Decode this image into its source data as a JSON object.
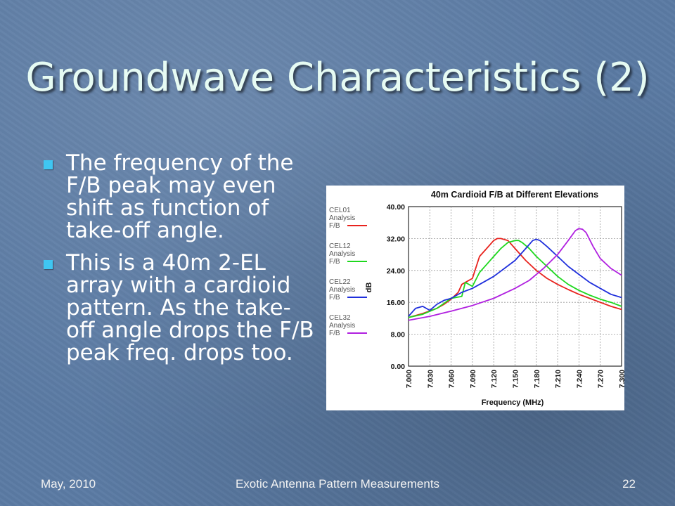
{
  "slide": {
    "title": "Groundwave Characteristics (2)",
    "bullets": [
      "The frequency of the F/B peak may even shift as function of take-off angle.",
      "This is a 40m 2-EL array with a cardioid pattern. As the take-off angle drops the F/B peak freq. drops too."
    ],
    "footer": {
      "date": "May, 2010",
      "center": "Exotic Antenna Pattern Measurements",
      "page": "22"
    },
    "colors": {
      "title": "#e6fbf3",
      "bullet_marker": "#3fc6f2",
      "background": "#5b7ba4"
    }
  },
  "chart_data": {
    "type": "line",
    "title": "40m Cardioid F/B at Different Elevations",
    "xlabel": "Frequency (MHz)",
    "ylabel": "dB",
    "xlim": [
      7.0,
      7.3
    ],
    "ylim": [
      0,
      40
    ],
    "xticks": [
      "7.000",
      "7.030",
      "7.060",
      "7.090",
      "7.120",
      "7.150",
      "7.180",
      "7.210",
      "7.240",
      "7.270",
      "7.300"
    ],
    "yticks": [
      "0.00",
      "8.00",
      "16.00",
      "24.00",
      "32.00",
      "40.00"
    ],
    "grid": true,
    "legend_position": "left",
    "series": [
      {
        "name": "CEL01 Analysis F/B",
        "color": "#e8231e",
        "x": [
          7.0,
          7.02,
          7.04,
          7.05,
          7.06,
          7.07,
          7.075,
          7.08,
          7.09,
          7.1,
          7.11,
          7.12,
          7.125,
          7.13,
          7.14,
          7.15,
          7.165,
          7.18,
          7.195,
          7.21,
          7.225,
          7.24,
          7.255,
          7.27,
          7.285,
          7.3
        ],
        "y": [
          12.2,
          13.2,
          14.5,
          15.5,
          16.8,
          18.5,
          20.5,
          21.0,
          22.0,
          27.5,
          29.5,
          31.5,
          32.0,
          32.0,
          31.5,
          29.5,
          26.5,
          24.0,
          22.0,
          20.5,
          19.2,
          18.0,
          17.0,
          16.0,
          15.0,
          14.2
        ]
      },
      {
        "name": "CEL12 Analysis F/B",
        "color": "#1ed81e",
        "x": [
          7.0,
          7.02,
          7.04,
          7.06,
          7.075,
          7.08,
          7.09,
          7.1,
          7.11,
          7.12,
          7.13,
          7.14,
          7.15,
          7.155,
          7.16,
          7.17,
          7.18,
          7.195,
          7.21,
          7.225,
          7.24,
          7.255,
          7.27,
          7.285,
          7.3
        ],
        "y": [
          12.2,
          13.0,
          14.5,
          17.0,
          17.5,
          21.0,
          20.0,
          23.5,
          25.5,
          27.5,
          29.5,
          31.0,
          31.5,
          31.5,
          31.0,
          29.5,
          27.5,
          25.0,
          22.5,
          20.5,
          19.0,
          17.8,
          16.8,
          16.0,
          15.0
        ]
      },
      {
        "name": "CEL22 Analysis F/B",
        "color": "#1f2fdc",
        "x": [
          7.0,
          7.01,
          7.02,
          7.03,
          7.04,
          7.05,
          7.06,
          7.075,
          7.09,
          7.105,
          7.12,
          7.135,
          7.15,
          7.165,
          7.175,
          7.18,
          7.185,
          7.195,
          7.21,
          7.225,
          7.24,
          7.255,
          7.27,
          7.285,
          7.3
        ],
        "y": [
          12.5,
          14.5,
          15.0,
          14.0,
          15.5,
          16.5,
          17.0,
          18.5,
          19.5,
          21.0,
          22.5,
          24.5,
          26.5,
          29.5,
          31.5,
          31.8,
          31.5,
          30.0,
          27.5,
          25.0,
          23.0,
          21.0,
          19.5,
          18.0,
          17.2
        ]
      },
      {
        "name": "CEL32 Analysis F/B",
        "color": "#b020e0",
        "x": [
          7.0,
          7.03,
          7.06,
          7.09,
          7.12,
          7.15,
          7.17,
          7.19,
          7.21,
          7.225,
          7.235,
          7.24,
          7.245,
          7.25,
          7.26,
          7.27,
          7.285,
          7.3
        ],
        "y": [
          11.5,
          12.5,
          13.8,
          15.2,
          17.0,
          19.5,
          21.5,
          24.5,
          28.0,
          31.5,
          34.0,
          34.5,
          34.3,
          33.5,
          30.0,
          27.0,
          24.5,
          22.8
        ]
      }
    ]
  }
}
